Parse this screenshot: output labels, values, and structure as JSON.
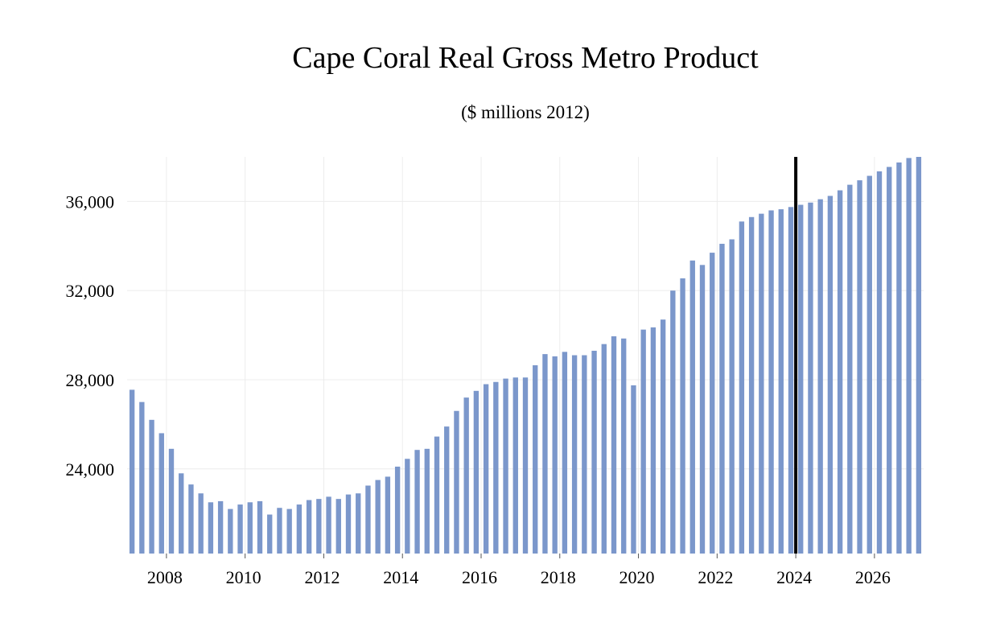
{
  "chart_data": {
    "type": "bar",
    "title": "Cape Coral Real Gross Metro Product",
    "subtitle": "($ millions 2012)",
    "xlabel": "",
    "ylabel": "",
    "ylim": [
      20200,
      38000
    ],
    "yticks": [
      24000,
      28000,
      32000,
      36000
    ],
    "ytick_labels": [
      "24,000",
      "28,000",
      "32,000",
      "36,000"
    ],
    "xticks": [
      "2008",
      "2010",
      "2012",
      "2014",
      "2016",
      "2018",
      "2020",
      "2022",
      "2024",
      "2026"
    ],
    "grid": true,
    "bar_color": "#7b97cb",
    "forecast_line_color": "#000000",
    "forecast_start": "2024Q1",
    "categories": [
      "2007Q1",
      "2007Q2",
      "2007Q3",
      "2007Q4",
      "2008Q1",
      "2008Q2",
      "2008Q3",
      "2008Q4",
      "2009Q1",
      "2009Q2",
      "2009Q3",
      "2009Q4",
      "2010Q1",
      "2010Q2",
      "2010Q3",
      "2010Q4",
      "2011Q1",
      "2011Q2",
      "2011Q3",
      "2011Q4",
      "2012Q1",
      "2012Q2",
      "2012Q3",
      "2012Q4",
      "2013Q1",
      "2013Q2",
      "2013Q3",
      "2013Q4",
      "2014Q1",
      "2014Q2",
      "2014Q3",
      "2014Q4",
      "2015Q1",
      "2015Q2",
      "2015Q3",
      "2015Q4",
      "2016Q1",
      "2016Q2",
      "2016Q3",
      "2016Q4",
      "2017Q1",
      "2017Q2",
      "2017Q3",
      "2017Q4",
      "2018Q1",
      "2018Q2",
      "2018Q3",
      "2018Q4",
      "2019Q1",
      "2019Q2",
      "2019Q3",
      "2019Q4",
      "2020Q1",
      "2020Q2",
      "2020Q3",
      "2020Q4",
      "2021Q1",
      "2021Q2",
      "2021Q3",
      "2021Q4",
      "2022Q1",
      "2022Q2",
      "2022Q3",
      "2022Q4",
      "2023Q1",
      "2023Q2",
      "2023Q3",
      "2023Q4",
      "2024Q1",
      "2024Q2",
      "2024Q3",
      "2024Q4",
      "2025Q1",
      "2025Q2",
      "2025Q3",
      "2025Q4",
      "2026Q1",
      "2026Q2",
      "2026Q3",
      "2026Q4",
      "2027Q1"
    ],
    "values": [
      27550,
      27000,
      26200,
      25600,
      24900,
      23800,
      23300,
      22900,
      22500,
      22550,
      22200,
      22400,
      22500,
      22550,
      21950,
      22250,
      22200,
      22400,
      22600,
      22650,
      22750,
      22650,
      22850,
      22900,
      23250,
      23500,
      23650,
      24100,
      24450,
      24850,
      24900,
      25450,
      25900,
      26600,
      27200,
      27500,
      27800,
      27900,
      28050,
      28100,
      28100,
      28650,
      29150,
      29050,
      29250,
      29100,
      29100,
      29300,
      29600,
      29950,
      29850,
      27750,
      30250,
      30350,
      30700,
      32000,
      32550,
      33350,
      33150,
      33700,
      34100,
      34300,
      35100,
      35300,
      35450,
      35600,
      35650,
      35750,
      35850,
      35950,
      36100,
      36250,
      36500,
      36750,
      36950,
      37150,
      37350,
      37550,
      37750,
      37950,
      38000
    ]
  }
}
